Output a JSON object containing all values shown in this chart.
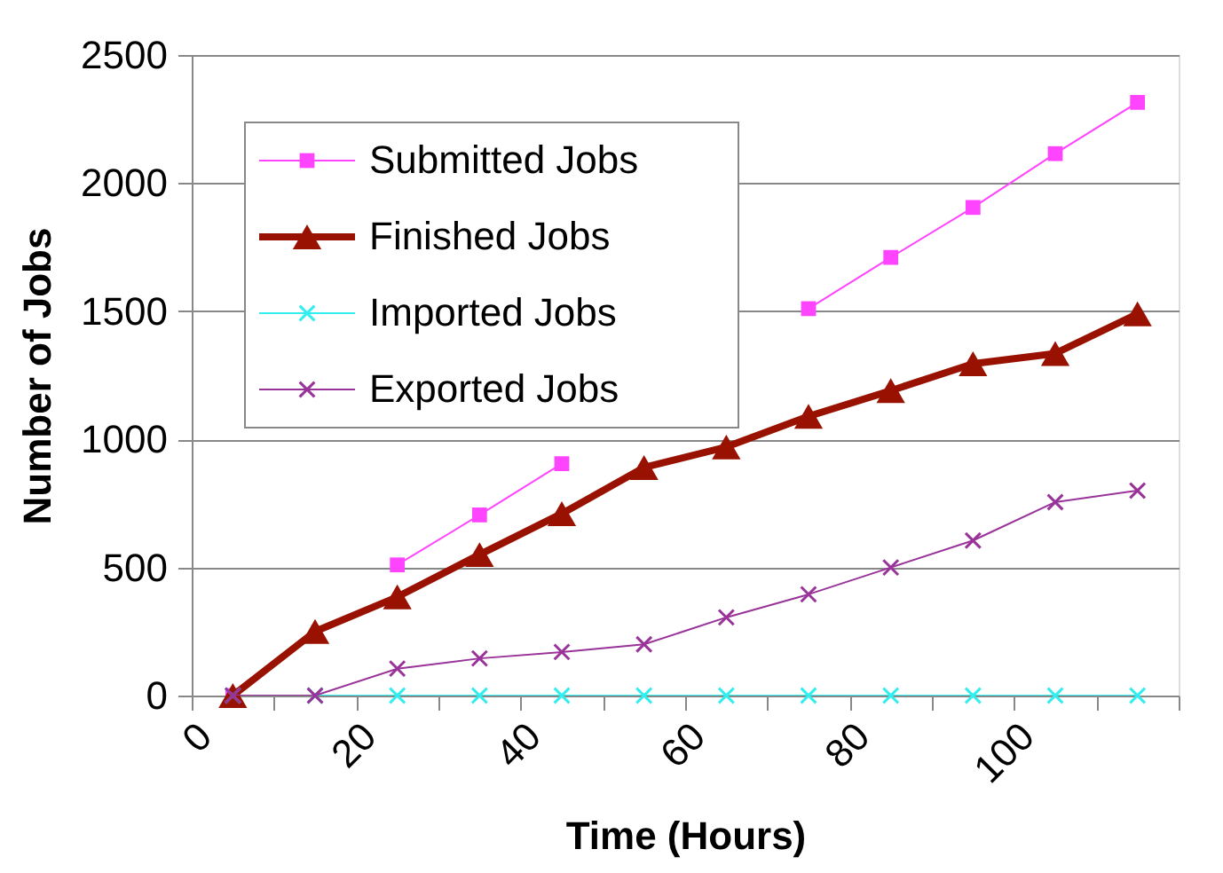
{
  "chart_data": {
    "type": "line",
    "xlabel": "Time (Hours)",
    "ylabel": "Number of Jobs",
    "x": [
      5,
      15,
      25,
      35,
      45,
      55,
      65,
      75,
      85,
      95,
      105,
      115
    ],
    "series": [
      {
        "name": "Submitted Jobs",
        "color": "#ff44ff",
        "marker": "square",
        "values": [
          0,
          null,
          510,
          705,
          905,
          null,
          null,
          1510,
          1710,
          1905,
          2115,
          2315
        ]
      },
      {
        "name": "Finished Jobs",
        "color": "#991100",
        "marker": "triangle",
        "values": [
          0,
          250,
          385,
          550,
          710,
          890,
          970,
          1090,
          1190,
          1295,
          1335,
          1490
        ]
      },
      {
        "name": "Imported Jobs",
        "color": "#33eeee",
        "marker": "cross",
        "values": [
          0,
          0,
          0,
          0,
          0,
          0,
          0,
          0,
          0,
          0,
          0,
          0
        ]
      },
      {
        "name": "Exported Jobs",
        "color": "#993399",
        "marker": "cross",
        "values": [
          0,
          0,
          105,
          145,
          170,
          200,
          305,
          395,
          500,
          605,
          755,
          800
        ]
      }
    ],
    "xlim": [
      0,
      120
    ],
    "xticks": [
      0,
      {
        "value": 10,
        "label": null
      },
      20,
      {
        "value": 30,
        "label": null
      },
      40,
      {
        "value": 50,
        "label": null
      },
      60,
      {
        "value": 70,
        "label": null
      },
      80,
      {
        "value": 90,
        "label": null
      },
      100,
      {
        "value": 110,
        "label": null
      },
      {
        "value": 120,
        "label": null
      }
    ],
    "ylim": [
      0,
      2500
    ],
    "yticks": [
      0,
      500,
      1000,
      1500,
      2000,
      2500
    ],
    "grid": "y",
    "legend": "top left",
    "line_style": "solid"
  }
}
